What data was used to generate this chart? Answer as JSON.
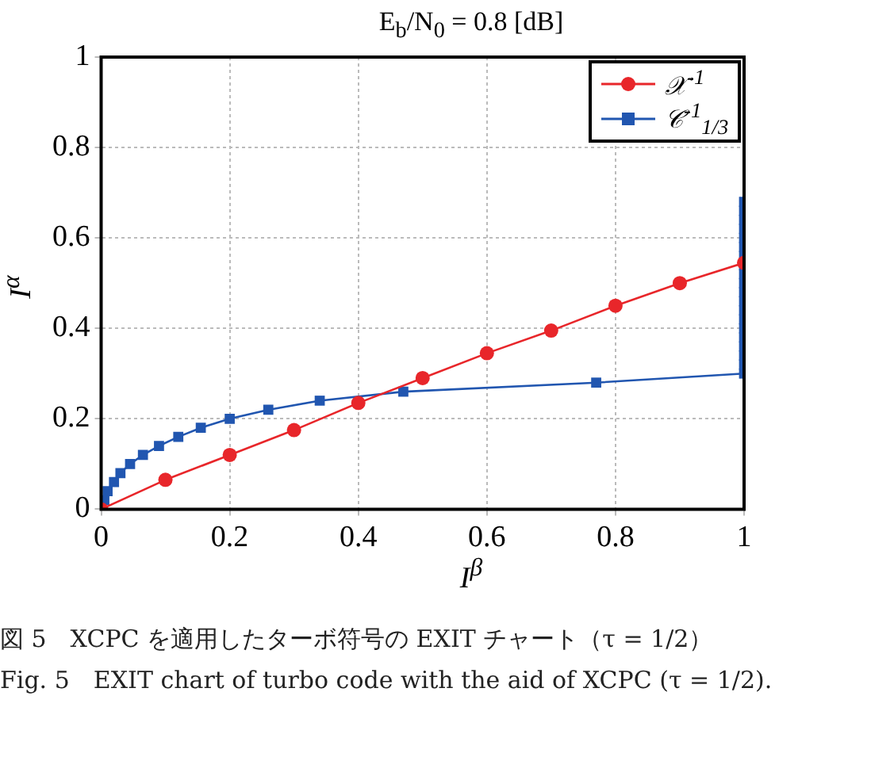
{
  "chart_data": {
    "type": "line",
    "title": "E$_{b}$/N$_{0}$ = 0.8 [dB]",
    "xlabel": "I$^{β}$",
    "ylabel": "I$^{α}$",
    "xlim": [
      0,
      1
    ],
    "ylim": [
      0,
      1
    ],
    "xticks": [
      0,
      0.2,
      0.4,
      0.6,
      0.8,
      1
    ],
    "yticks": [
      0,
      0.2,
      0.4,
      0.6,
      0.8,
      1
    ],
    "grid": true,
    "legend": "top right",
    "series": [
      {
        "name": "𝒳$^{-1}$",
        "color": "#e8262a",
        "marker": "circle",
        "x": [
          0,
          0.1,
          0.2,
          0.3,
          0.4,
          0.5,
          0.6,
          0.7,
          0.8,
          0.9,
          1
        ],
        "values": [
          0,
          0.065,
          0.12,
          0.175,
          0.235,
          0.29,
          0.345,
          0.395,
          0.45,
          0.5,
          0.545
        ]
      },
      {
        "name": "𝒞$^{-1}$$_{1/3}$",
        "color": "#2156b0",
        "marker": "square",
        "x": [
          0,
          0.005,
          0.01,
          0.02,
          0.03,
          0.045,
          0.065,
          0.09,
          0.12,
          0.155,
          0.2,
          0.26,
          0.34,
          0.47,
          0.77,
          1,
          1,
          1,
          1,
          1,
          1,
          1,
          1,
          1,
          1,
          1,
          1,
          1,
          1,
          1,
          1,
          1,
          1,
          1,
          1
        ],
        "values": [
          0,
          0.02,
          0.04,
          0.06,
          0.08,
          0.1,
          0.12,
          0.14,
          0.16,
          0.18,
          0.2,
          0.22,
          0.24,
          0.26,
          0.28,
          0.3,
          0.32,
          0.34,
          0.36,
          0.38,
          0.4,
          0.42,
          0.44,
          0.46,
          0.48,
          0.5,
          0.52,
          0.54,
          0.56,
          0.58,
          0.6,
          0.62,
          0.64,
          0.66,
          0.68
        ]
      }
    ],
    "annotations": [
      "図 5　XCPC を適用したターボ符号の EXIT チャート（τ = 1/2）",
      "Fig. 5　EXIT chart of turbo code with the aid of XCPC (τ = 1/2)."
    ]
  }
}
